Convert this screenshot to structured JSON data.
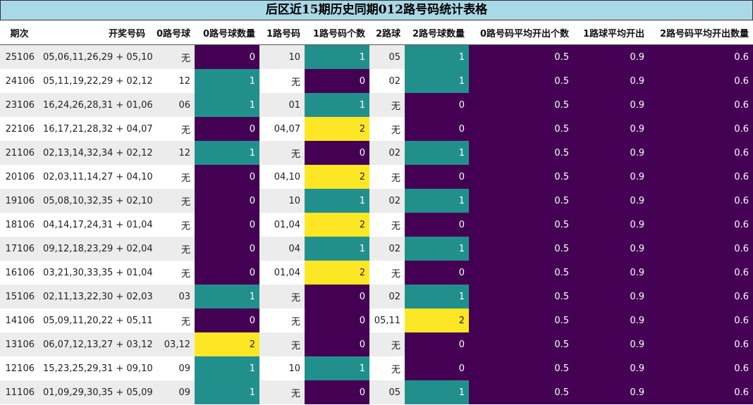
{
  "title": "后区近15期历史同期012路号码统计表格",
  "headers": [
    "期次",
    "开奖号码",
    "0路号球",
    "0路号球数量",
    "1路号码",
    "1路号码个数",
    "2路球",
    "2路号球数量",
    "0路号码平均开出个数",
    "1路球平均开出",
    "2路号码平均开出数量"
  ],
  "colors": {
    "zero": "#440154",
    "one": "#21908d",
    "two": "#fde725",
    "avg": "#440154",
    "title_bg": "#a9d8e6"
  },
  "chart_data": {
    "type": "table",
    "rows": [
      [
        "25106",
        "05,06,11,26,29 + 05,10",
        "无",
        0,
        "10",
        1,
        "05",
        1,
        0.5,
        0.9,
        0.6
      ],
      [
        "24106",
        "05,11,19,22,29 + 02,12",
        "12",
        1,
        "无",
        0,
        "02",
        1,
        0.5,
        0.9,
        0.6
      ],
      [
        "23106",
        "16,24,26,28,31 + 01,06",
        "06",
        1,
        "01",
        1,
        "无",
        0,
        0.5,
        0.9,
        0.6
      ],
      [
        "22106",
        "16,17,21,28,32 + 04,07",
        "无",
        0,
        "04,07",
        2,
        "无",
        0,
        0.5,
        0.9,
        0.6
      ],
      [
        "21106",
        "02,13,14,32,34 + 02,12",
        "12",
        1,
        "无",
        0,
        "02",
        1,
        0.5,
        0.9,
        0.6
      ],
      [
        "20106",
        "02,03,11,14,27 + 04,10",
        "无",
        0,
        "04,10",
        2,
        "无",
        0,
        0.5,
        0.9,
        0.6
      ],
      [
        "19106",
        "05,08,10,32,35 + 02,10",
        "无",
        0,
        "10",
        1,
        "02",
        1,
        0.5,
        0.9,
        0.6
      ],
      [
        "18106",
        "04,14,17,24,31 + 01,04",
        "无",
        0,
        "01,04",
        2,
        "无",
        0,
        0.5,
        0.9,
        0.6
      ],
      [
        "17106",
        "09,12,18,23,29 + 02,04",
        "无",
        0,
        "04",
        1,
        "02",
        1,
        0.5,
        0.9,
        0.6
      ],
      [
        "16106",
        "03,21,30,33,35 + 01,04",
        "无",
        0,
        "01,04",
        2,
        "无",
        0,
        0.5,
        0.9,
        0.6
      ],
      [
        "15106",
        "02,11,13,22,30 + 02,03",
        "03",
        1,
        "无",
        0,
        "02",
        1,
        0.5,
        0.9,
        0.6
      ],
      [
        "14106",
        "05,09,11,20,22 + 05,11",
        "无",
        0,
        "无",
        0,
        "05,11",
        2,
        0.5,
        0.9,
        0.6
      ],
      [
        "13106",
        "06,07,12,13,27 + 03,12",
        "03,12",
        2,
        "无",
        0,
        "无",
        0,
        0.5,
        0.9,
        0.6
      ],
      [
        "12106",
        "15,23,25,29,31 + 09,10",
        "09",
        1,
        "10",
        1,
        "无",
        0,
        0.5,
        0.9,
        0.6
      ],
      [
        "11106",
        "01,09,29,30,35 + 05,09",
        "09",
        1,
        "无",
        0,
        "05",
        1,
        0.5,
        0.9,
        0.6
      ]
    ]
  }
}
